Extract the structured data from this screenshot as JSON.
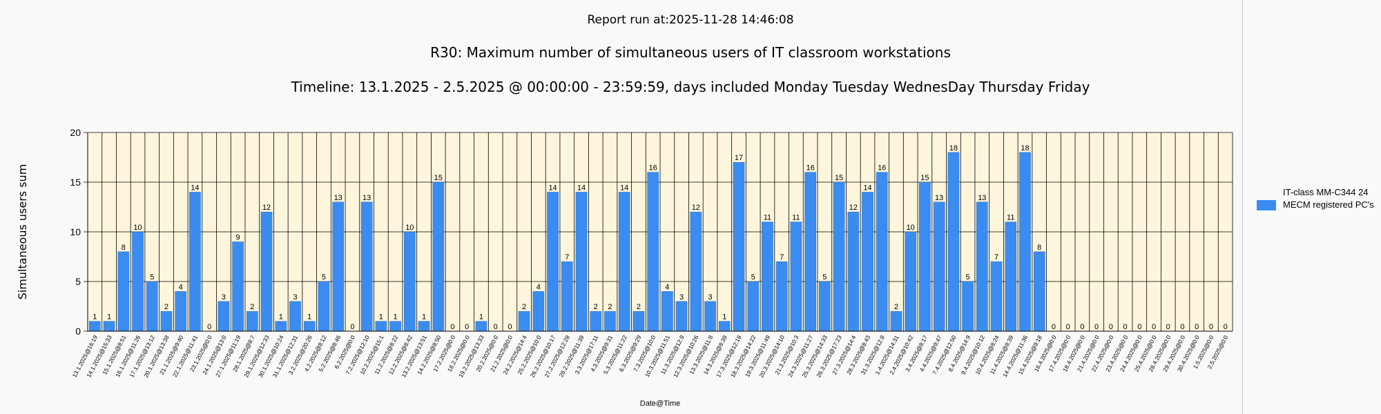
{
  "report_run": "Report run at:2025-11-28 14:46:08",
  "chart_data": {
    "type": "bar",
    "title": "R30: Maximum number of simultaneous users of IT classroom workstations",
    "subtitle": "Timeline: 13.1.2025  - 2.5.2025  @  00:00:00 -  23:59:59, days included Monday Tuesday WednesDay Thursday Friday",
    "xlabel": "Date@Time",
    "ylabel": "Simultaneous users sum",
    "ylim": [
      0,
      20
    ],
    "yticks": [
      0,
      5,
      10,
      15,
      20
    ],
    "grid": true,
    "legend_position": "right",
    "bar_color": "#3b8cf0",
    "plot_background": "#fdf6dc",
    "categories": [
      "13.1.2025@16:19",
      "14.1.2025@15:33",
      "15.1.2025@8:51",
      "16.1.2025@11:26",
      "17.1.2025@13:12",
      "20.1.2025@13:38",
      "21.1.2025@9:40",
      "22.1.2025@11:41",
      "23.1.2025@0:0",
      "24.1.2025@13:0",
      "27.1.2025@11:19",
      "28.1.2025@8:7",
      "29.1.2025@12:33",
      "30.1.2025@10:24",
      "31.1.2025@12:31",
      "3.2.2025@20:26",
      "4.2.2025@8:12",
      "5.2.2025@8:46",
      "6.2.2025@0:0",
      "7.2.2025@12:10",
      "10.2.2025@15:1",
      "11.2.2025@8:22",
      "12.2.2025@8:42",
      "13.2.2025@13:51",
      "14.2.2025@8:50",
      "17.2.2025@0:0",
      "18.2.2025@0:0",
      "19.2.2025@13:33",
      "20.2.2025@0:0",
      "21.2.2025@0:0",
      "24.2.2025@14:4",
      "25.2.2025@10:0",
      "26.2.2025@10:17",
      "27.2.2025@12:28",
      "28.2.2025@11:39",
      "3.3.2025@17:11",
      "4.3.2025@9:31",
      "5.3.2025@11:22",
      "6.3.2025@9:29",
      "7.3.2025@10:0",
      "10.3.2025@11:51",
      "11.3.2025@12:9",
      "12.3.2025@10:26",
      "13.3.2025@11:8",
      "14.3.2025@8:39",
      "17.3.2025@12:18",
      "18.3.2025@14:22",
      "19.3.2025@11:49",
      "20.3.2025@14:10",
      "21.3.2025@10:3",
      "24.3.2025@11:27",
      "25.3.2025@14:33",
      "26.3.2025@17:23",
      "27.3.2025@14:4",
      "28.3.2025@8:43",
      "31.3.2025@12:8",
      "1.4.2025@14:31",
      "2.4.2025@10:42",
      "3.4.2025@8:17",
      "4.4.2025@9:47",
      "7.4.2025@12:50",
      "8.4.2025@14:9",
      "9.4.2025@10:12",
      "10.4.2025@8:24",
      "11.4.2025@8:39",
      "14.4.2025@11:36",
      "15.4.2025@9:18",
      "16.4.2025@0:0",
      "17.4.2025@0:0",
      "18.4.2025@0:0",
      "21.4.2025@0:0",
      "22.4.2025@0:0",
      "23.4.2025@0:0",
      "24.4.2025@0:0",
      "25.4.2025@0:0",
      "28.4.2025@0:0",
      "29.4.2025@0:0",
      "30.4.2025@0:0",
      "1.5.2025@0:0",
      "2.5.2025@0:0"
    ],
    "series": [
      {
        "name": "IT-class MM-C344 24 MECM registered PC's",
        "values": [
          1,
          1,
          8,
          10,
          5,
          2,
          4,
          14,
          0,
          3,
          9,
          2,
          12,
          1,
          3,
          1,
          5,
          13,
          0,
          13,
          1,
          1,
          10,
          1,
          15,
          0,
          0,
          1,
          0,
          0,
          2,
          4,
          14,
          7,
          14,
          2,
          2,
          14,
          2,
          16,
          4,
          3,
          12,
          3,
          1,
          17,
          5,
          11,
          7,
          11,
          16,
          5,
          15,
          12,
          14,
          16,
          2,
          10,
          15,
          13,
          18,
          5,
          13,
          7,
          11,
          18,
          8,
          0,
          0,
          0,
          0,
          0,
          0,
          0,
          0,
          0,
          0,
          0,
          0,
          0
        ]
      }
    ]
  }
}
